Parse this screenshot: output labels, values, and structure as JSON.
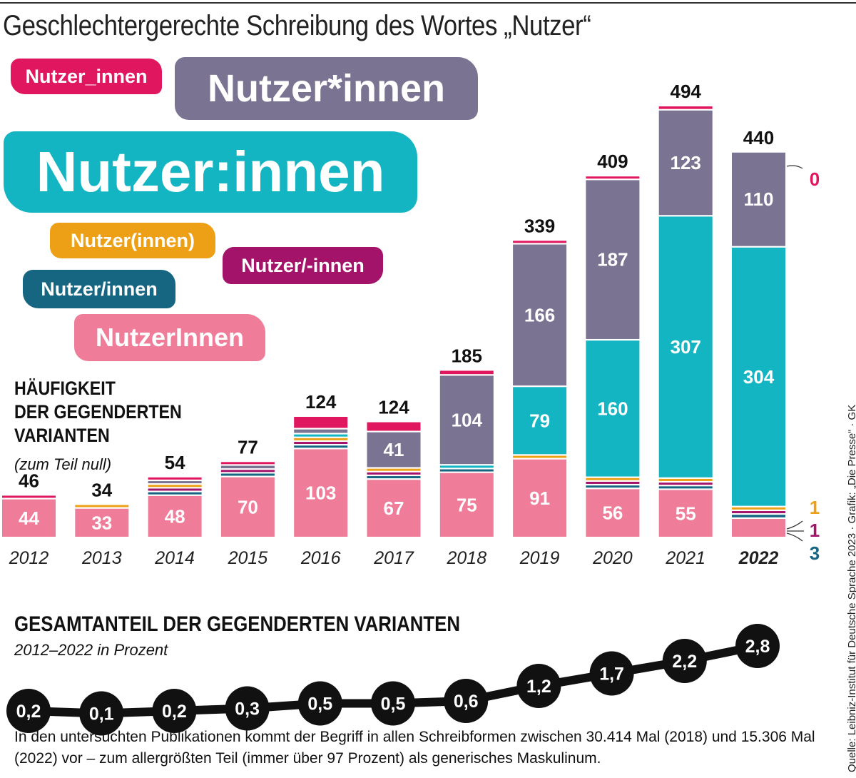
{
  "title": "Geschlechtergerechte Schreibung des Wortes „Nutzer“",
  "variants": [
    {
      "label": "Nutzer_innen",
      "color": "#e0165f"
    },
    {
      "label": "Nutzer*innen",
      "color": "#7a7392"
    },
    {
      "label": "Nutzer:innen",
      "color": "#14b5c2"
    },
    {
      "label": "Nutzer(innen)",
      "color": "#eda016"
    },
    {
      "label": "Nutzer/-innen",
      "color": "#a4136a"
    },
    {
      "label": "Nutzer/innen",
      "color": "#166682"
    },
    {
      "label": "NutzerInnen",
      "color": "#ef7d99"
    }
  ],
  "frequency_heading": [
    "HÄUFIGKEIT",
    "DER GEGENDERTEN",
    "VARIANTEN"
  ],
  "frequency_note": "(zum Teil null)",
  "share_heading": "GESAMTANTEIL DER GEGENDERTEN VARIANTEN",
  "share_subheading": "2012–2022 in Prozent",
  "footnote": "In den untersuchten Publikationen kommt der Begriff in allen Schreibformen zwischen 30.414 Mal (2018) und 15.306 Mal (2022) vor – zum allergrößten Teil (immer über 97 Prozent) als generisches Maskulinum.",
  "source": "Quelle: Leibniz-Institut für Deutsche Sprache 2023 · Grafik: „Die Presse“ · GK",
  "chart_data": [
    {
      "type": "bar",
      "stacked": true,
      "categories": [
        "2012",
        "2013",
        "2014",
        "2015",
        "2016",
        "2017",
        "2018",
        "2019",
        "2020",
        "2021",
        "2022"
      ],
      "totals": [
        46,
        34,
        54,
        77,
        124,
        124,
        185,
        339,
        409,
        494,
        440
      ],
      "series": [
        {
          "name": "NutzerInnen",
          "color": "#ef7d99",
          "labeled": true,
          "values": [
            44,
            33,
            48,
            70,
            103,
            67,
            75,
            91,
            56,
            55,
            21
          ]
        },
        {
          "name": "Nutzer/innen",
          "color": "#166682",
          "labeled": false,
          "values": [
            0,
            0,
            1,
            1,
            1,
            2,
            1,
            0,
            2,
            2,
            3
          ]
        },
        {
          "name": "Nutzer/-innen",
          "color": "#a4136a",
          "labeled": false,
          "values": [
            0,
            0,
            1,
            1,
            1,
            2,
            0,
            0,
            1,
            2,
            1
          ]
        },
        {
          "name": "Nutzer(innen)",
          "color": "#eda016",
          "labeled": false,
          "values": [
            0,
            1,
            1,
            0,
            1,
            2,
            0,
            2,
            2,
            2,
            1
          ]
        },
        {
          "name": "Nutzer:innen",
          "color": "#14b5c2",
          "labeled": true,
          "values": [
            0,
            0,
            0,
            0,
            1,
            0,
            1,
            79,
            160,
            307,
            304
          ]
        },
        {
          "name": "Nutzer*innen",
          "color": "#7a7392",
          "labeled": true,
          "values": [
            0,
            0,
            1,
            3,
            4,
            41,
            104,
            166,
            187,
            123,
            110
          ]
        },
        {
          "name": "Nutzer_innen",
          "color": "#e0165f",
          "labeled": false,
          "values": [
            2,
            0,
            2,
            2,
            13,
            10,
            4,
            1,
            1,
            3,
            0
          ]
        }
      ],
      "callouts": [
        {
          "value": "0",
          "color": "#e0165f"
        },
        {
          "value": "1",
          "color": "#eda016"
        },
        {
          "value": "1",
          "color": "#a4136a"
        },
        {
          "value": "3",
          "color": "#166682"
        }
      ],
      "highlight_category": "2022"
    },
    {
      "type": "line",
      "x": [
        "2012",
        "2013",
        "2014",
        "2015",
        "2016",
        "2017",
        "2018",
        "2019",
        "2020",
        "2021",
        "2022"
      ],
      "values": [
        0.2,
        0.1,
        0.2,
        0.3,
        0.5,
        0.5,
        0.6,
        1.2,
        1.7,
        2.2,
        2.8
      ],
      "labels": [
        "0,2",
        "0,1",
        "0,2",
        "0,3",
        "0,5",
        "0,5",
        "0,6",
        "1,2",
        "1,7",
        "2,2",
        "2,8"
      ]
    }
  ]
}
